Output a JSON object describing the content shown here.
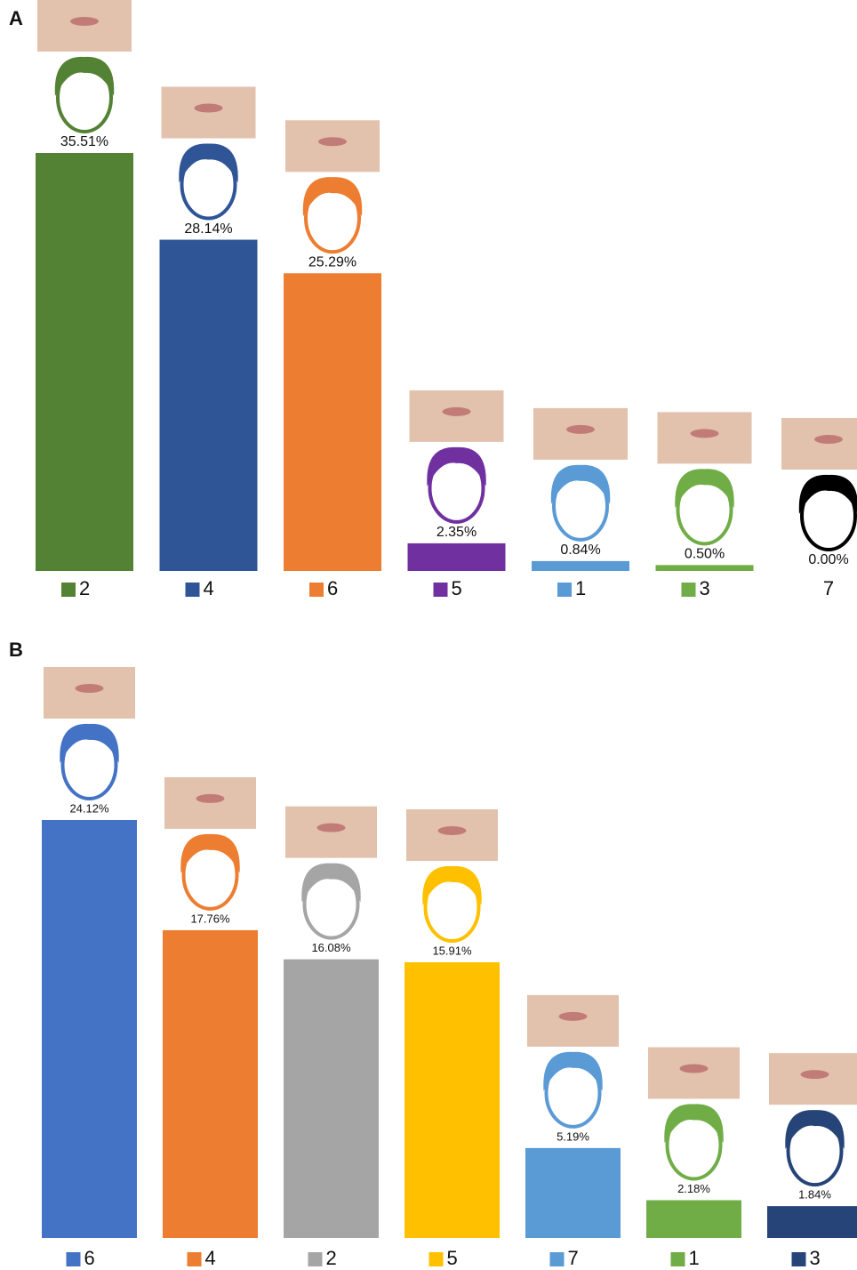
{
  "chart_data": [
    {
      "type": "bar",
      "title": "A",
      "categories": [
        "2",
        "4",
        "6",
        "5",
        "1",
        "3",
        "7"
      ],
      "values": [
        35.51,
        28.14,
        25.29,
        2.35,
        0.84,
        0.5,
        0.0
      ],
      "value_labels": [
        "35.51%",
        "28.14%",
        "25.29%",
        "2.35%",
        "0.84%",
        "0.50%",
        "0.00%"
      ],
      "colors": [
        "#548235",
        "#2f5597",
        "#ed7d31",
        "#7030a0",
        "#5b9bd5",
        "#70ad47",
        null
      ]
    },
    {
      "type": "bar",
      "title": "B",
      "categories": [
        "6",
        "4",
        "2",
        "5",
        "7",
        "1",
        "3"
      ],
      "values": [
        24.12,
        17.76,
        16.08,
        15.91,
        5.19,
        2.18,
        1.84
      ],
      "value_labels": [
        "24.12%",
        "17.76%",
        "16.08%",
        "15.91%",
        "5.19%",
        "2.18%",
        "1.84%"
      ],
      "colors": [
        "#4472c4",
        "#ed7d31",
        "#a5a5a5",
        "#ffc000",
        "#5b9bd5",
        "#70ad47",
        "#264478"
      ]
    }
  ]
}
